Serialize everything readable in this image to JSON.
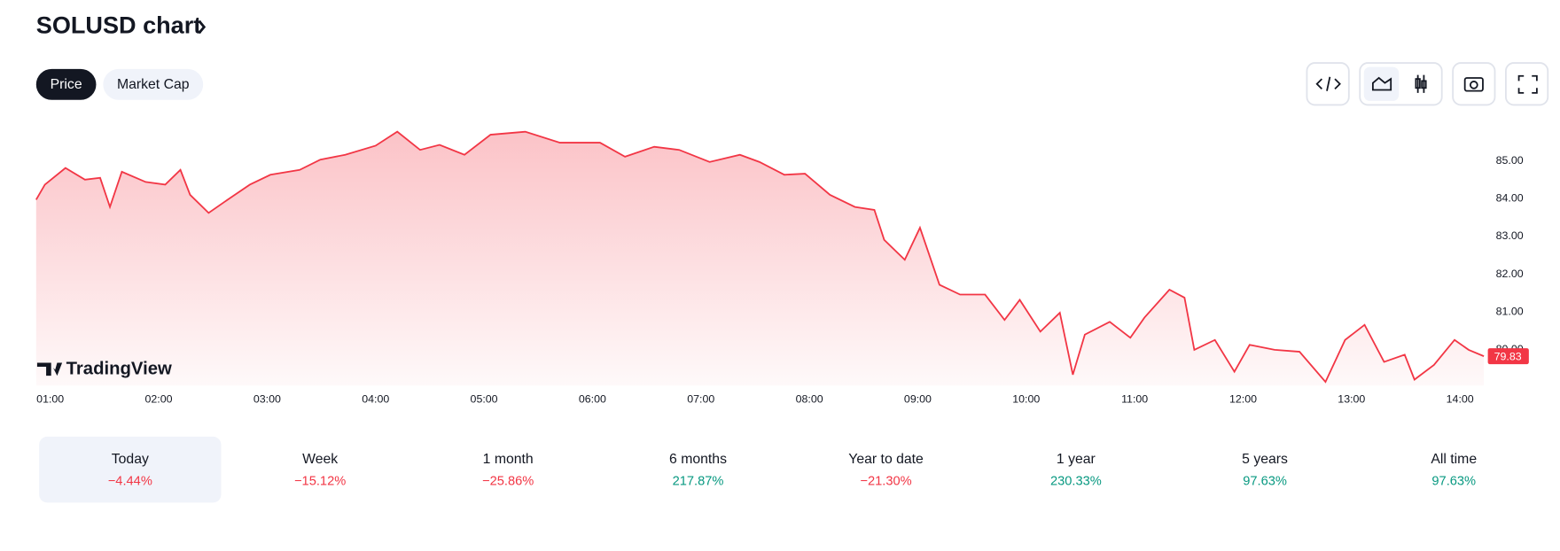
{
  "header": {
    "title": "SOLUSD chart",
    "tabs": [
      "Price",
      "Market Cap"
    ]
  },
  "chart_data": {
    "type": "line",
    "color": "#f23645",
    "x": [
      0.87,
      0.95,
      1.14,
      1.32,
      1.46,
      1.55,
      1.66,
      1.88,
      2.06,
      2.2,
      2.29,
      2.46,
      2.66,
      2.84,
      3.03,
      3.3,
      3.49,
      3.72,
      4.0,
      4.2,
      4.41,
      4.59,
      4.82,
      5.06,
      5.38,
      5.7,
      6.07,
      6.3,
      6.57,
      6.8,
      7.08,
      7.36,
      7.54,
      7.77,
      7.96,
      8.19,
      8.42,
      8.6,
      8.69,
      8.88,
      9.02,
      9.2,
      9.39,
      9.62,
      9.8,
      9.94,
      10.13,
      10.31,
      10.43,
      10.54,
      10.77,
      10.96,
      11.09,
      11.32,
      11.46,
      11.55,
      11.74,
      11.92,
      12.06,
      12.29,
      12.52,
      12.76,
      12.94,
      13.12,
      13.3,
      13.49,
      13.58,
      13.76,
      13.95,
      14.08,
      14.22
    ],
    "values": [
      83.97,
      84.37,
      84.81,
      84.5,
      84.55,
      83.78,
      84.71,
      84.44,
      84.37,
      84.76,
      84.1,
      83.62,
      84.02,
      84.37,
      84.63,
      84.76,
      85.03,
      85.16,
      85.4,
      85.77,
      85.29,
      85.42,
      85.16,
      85.69,
      85.77,
      85.48,
      85.48,
      85.11,
      85.37,
      85.29,
      84.97,
      85.16,
      84.97,
      84.63,
      84.66,
      84.1,
      83.78,
      83.7,
      82.91,
      82.38,
      83.23,
      81.72,
      81.46,
      81.46,
      80.79,
      81.32,
      80.48,
      80.98,
      79.34,
      80.4,
      80.74,
      80.32,
      80.85,
      81.59,
      81.38,
      80.0,
      80.26,
      79.42,
      80.13,
      80.0,
      79.95,
      79.15,
      80.26,
      80.66,
      79.68,
      79.87,
      79.21,
      79.6,
      80.26,
      80.0,
      79.83
    ],
    "xlim": [
      0.87,
      14.22
    ],
    "xticks": [
      {
        "value": 1,
        "label": "01:00"
      },
      {
        "value": 2,
        "label": "02:00"
      },
      {
        "value": 3,
        "label": "03:00"
      },
      {
        "value": 4,
        "label": "04:00"
      },
      {
        "value": 5,
        "label": "05:00"
      },
      {
        "value": 6,
        "label": "06:00"
      },
      {
        "value": 7,
        "label": "07:00"
      },
      {
        "value": 8,
        "label": "08:00"
      },
      {
        "value": 9,
        "label": "09:00"
      },
      {
        "value": 10,
        "label": "10:00"
      },
      {
        "value": 11,
        "label": "11:00"
      },
      {
        "value": 12,
        "label": "12:00"
      },
      {
        "value": 13,
        "label": "13:00"
      },
      {
        "value": 14,
        "label": "14:00"
      }
    ],
    "ylim": [
      79.05,
      85.95
    ],
    "yticks": [
      {
        "value": 80,
        "label": "80.00"
      },
      {
        "value": 81,
        "label": "81.00"
      },
      {
        "value": 82,
        "label": "82.00"
      },
      {
        "value": 83,
        "label": "83.00"
      },
      {
        "value": 84,
        "label": "84.00"
      },
      {
        "value": 85,
        "label": "85.00"
      }
    ],
    "branding": "TradingView"
  },
  "periods": [
    {
      "label": "Today",
      "change": "−4.44%"
    },
    {
      "label": "Week",
      "change": "−15.12%"
    },
    {
      "label": "1 month",
      "change": "−25.86%"
    },
    {
      "label": "6 months",
      "change": "217.87%"
    },
    {
      "label": "Year to date",
      "change": "−21.30%"
    },
    {
      "label": "1 year",
      "change": "230.33%"
    },
    {
      "label": "5 years",
      "change": "97.63%"
    },
    {
      "label": "All time",
      "change": "97.63%"
    }
  ]
}
